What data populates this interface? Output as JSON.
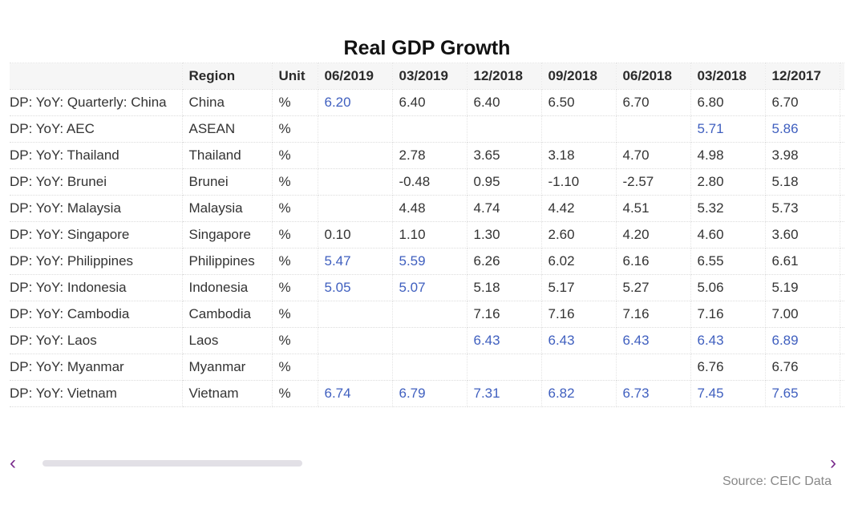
{
  "title": "Real GDP Growth",
  "columns": [
    "",
    "Region",
    "Unit",
    "06/2019",
    "03/2019",
    "12/2018",
    "09/2018",
    "06/2018",
    "03/2018",
    "12/2017"
  ],
  "rows": [
    {
      "name": "DP: YoY: Quarterly: China",
      "region": "China",
      "unit": "%",
      "values": [
        "6.20",
        "6.40",
        "6.40",
        "6.50",
        "6.70",
        "6.80",
        "6.70"
      ],
      "highlight": [
        true,
        false,
        false,
        false,
        false,
        false,
        false
      ]
    },
    {
      "name": "DP: YoY: AEC",
      "region": "ASEAN",
      "unit": "%",
      "values": [
        "",
        "",
        "",
        "",
        "",
        "5.71",
        "5.86"
      ],
      "highlight": [
        false,
        false,
        false,
        false,
        false,
        true,
        true
      ]
    },
    {
      "name": "DP: YoY: Thailand",
      "region": "Thailand",
      "unit": "%",
      "values": [
        "",
        "2.78",
        "3.65",
        "3.18",
        "4.70",
        "4.98",
        "3.98"
      ],
      "highlight": [
        false,
        false,
        false,
        false,
        false,
        false,
        false
      ]
    },
    {
      "name": "DP: YoY: Brunei",
      "region": "Brunei",
      "unit": "%",
      "values": [
        "",
        "-0.48",
        "0.95",
        "-1.10",
        "-2.57",
        "2.80",
        "5.18"
      ],
      "highlight": [
        false,
        false,
        false,
        false,
        false,
        false,
        false
      ]
    },
    {
      "name": "DP: YoY: Malaysia",
      "region": "Malaysia",
      "unit": "%",
      "values": [
        "",
        "4.48",
        "4.74",
        "4.42",
        "4.51",
        "5.32",
        "5.73"
      ],
      "highlight": [
        false,
        false,
        false,
        false,
        false,
        false,
        false
      ]
    },
    {
      "name": "DP: YoY: Singapore",
      "region": "Singapore",
      "unit": "%",
      "values": [
        "0.10",
        "1.10",
        "1.30",
        "2.60",
        "4.20",
        "4.60",
        "3.60"
      ],
      "highlight": [
        false,
        false,
        false,
        false,
        false,
        false,
        false
      ]
    },
    {
      "name": "DP: YoY: Philippines",
      "region": "Philippines",
      "unit": "%",
      "values": [
        "5.47",
        "5.59",
        "6.26",
        "6.02",
        "6.16",
        "6.55",
        "6.61"
      ],
      "highlight": [
        true,
        true,
        false,
        false,
        false,
        false,
        false
      ]
    },
    {
      "name": "DP: YoY: Indonesia",
      "region": "Indonesia",
      "unit": "%",
      "values": [
        "5.05",
        "5.07",
        "5.18",
        "5.17",
        "5.27",
        "5.06",
        "5.19"
      ],
      "highlight": [
        true,
        true,
        false,
        false,
        false,
        false,
        false
      ]
    },
    {
      "name": "DP: YoY: Cambodia",
      "region": "Cambodia",
      "unit": "%",
      "values": [
        "",
        "",
        "7.16",
        "7.16",
        "7.16",
        "7.16",
        "7.00"
      ],
      "highlight": [
        false,
        false,
        false,
        false,
        false,
        false,
        false
      ]
    },
    {
      "name": "DP: YoY: Laos",
      "region": "Laos",
      "unit": "%",
      "values": [
        "",
        "",
        "6.43",
        "6.43",
        "6.43",
        "6.43",
        "6.89"
      ],
      "highlight": [
        false,
        false,
        true,
        true,
        true,
        true,
        true
      ]
    },
    {
      "name": "DP: YoY: Myanmar",
      "region": "Myanmar",
      "unit": "%",
      "values": [
        "",
        "",
        "",
        "",
        "",
        "6.76",
        "6.76"
      ],
      "highlight": [
        false,
        false,
        false,
        false,
        false,
        false,
        false
      ]
    },
    {
      "name": "DP: YoY: Vietnam",
      "region": "Vietnam",
      "unit": "%",
      "values": [
        "6.74",
        "6.79",
        "7.31",
        "6.82",
        "6.73",
        "7.45",
        "7.65"
      ],
      "highlight": [
        true,
        true,
        true,
        true,
        true,
        true,
        true
      ]
    }
  ],
  "nav": {
    "prev_icon": "chevron-left-icon",
    "next_icon": "chevron-right-icon"
  },
  "source": "Source: CEIC Data",
  "colors": {
    "highlight": "#3f5fbf",
    "accent": "#7b2e8e",
    "header_bg": "#f6f6f6"
  }
}
